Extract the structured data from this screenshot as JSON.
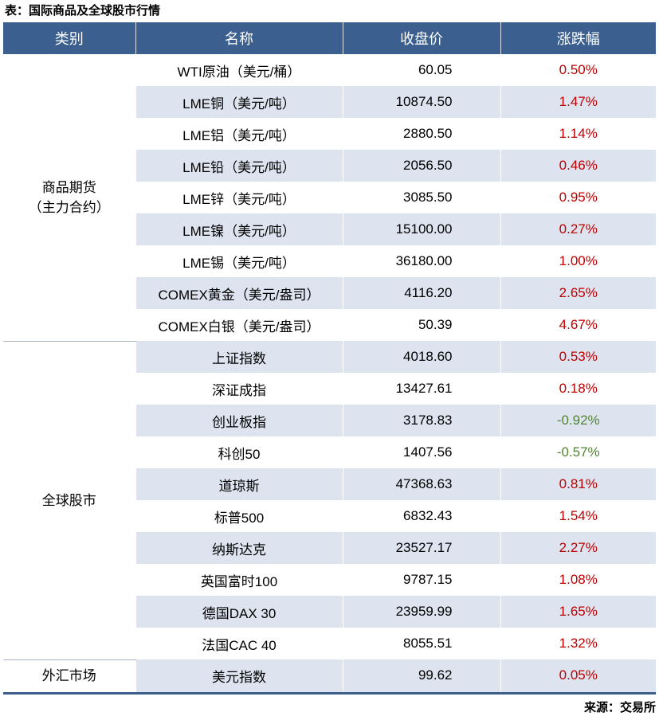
{
  "chart_data": {
    "type": "table",
    "title": "表：国际商品及全球股市行情",
    "source": "来源：交易所",
    "columns": [
      "类别",
      "名称",
      "收盘价",
      "涨跌幅"
    ],
    "groups": [
      {
        "category_lines": [
          "商品期货",
          "（主力合约）"
        ],
        "rows": [
          {
            "name": "WTI原油（美元/桶）",
            "close": "60.05",
            "change": "0.50%",
            "direction": "up"
          },
          {
            "name": "LME铜（美元/吨）",
            "close": "10874.50",
            "change": "1.47%",
            "direction": "up"
          },
          {
            "name": "LME铝（美元/吨）",
            "close": "2880.50",
            "change": "1.14%",
            "direction": "up"
          },
          {
            "name": "LME铅（美元/吨）",
            "close": "2056.50",
            "change": "0.46%",
            "direction": "up"
          },
          {
            "name": "LME锌（美元/吨）",
            "close": "3085.50",
            "change": "0.95%",
            "direction": "up"
          },
          {
            "name": "LME镍（美元/吨）",
            "close": "15100.00",
            "change": "0.27%",
            "direction": "up"
          },
          {
            "name": "LME锡（美元/吨）",
            "close": "36180.00",
            "change": "1.00%",
            "direction": "up"
          },
          {
            "name": "COMEX黄金（美元/盎司）",
            "close": "4116.20",
            "change": "2.65%",
            "direction": "up"
          },
          {
            "name": "COMEX白银（美元/盎司）",
            "close": "50.39",
            "change": "4.67%",
            "direction": "up"
          }
        ]
      },
      {
        "category_lines": [
          "全球股市"
        ],
        "rows": [
          {
            "name": "上证指数",
            "close": "4018.60",
            "change": "0.53%",
            "direction": "up"
          },
          {
            "name": "深证成指",
            "close": "13427.61",
            "change": "0.18%",
            "direction": "up"
          },
          {
            "name": "创业板指",
            "close": "3178.83",
            "change": "-0.92%",
            "direction": "down"
          },
          {
            "name": "科创50",
            "close": "1407.56",
            "change": "-0.57%",
            "direction": "down"
          },
          {
            "name": "道琼斯",
            "close": "47368.63",
            "change": "0.81%",
            "direction": "up"
          },
          {
            "name": "标普500",
            "close": "6832.43",
            "change": "1.54%",
            "direction": "up"
          },
          {
            "name": "纳斯达克",
            "close": "23527.17",
            "change": "2.27%",
            "direction": "up"
          },
          {
            "name": "英国富时100",
            "close": "9787.15",
            "change": "1.08%",
            "direction": "up"
          },
          {
            "name": "德国DAX 30",
            "close": "23959.99",
            "change": "1.65%",
            "direction": "up"
          },
          {
            "name": "法国CAC 40",
            "close": "8055.51",
            "change": "1.32%",
            "direction": "up"
          }
        ]
      },
      {
        "category_lines": [
          "外汇市场"
        ],
        "rows": [
          {
            "name": "美元指数",
            "close": "99.62",
            "change": "0.05%",
            "direction": "up"
          }
        ]
      }
    ],
    "layout": {
      "legend": "none",
      "grid": "alternating-row-bands",
      "positive_change_color": "#c00000",
      "negative_change_color": "#548235",
      "header_bg": "#3b608f",
      "band_bg": "#dde4ef",
      "bottom_rule": "#3a5f8c",
      "group_divider": "#a9b0bd"
    }
  }
}
